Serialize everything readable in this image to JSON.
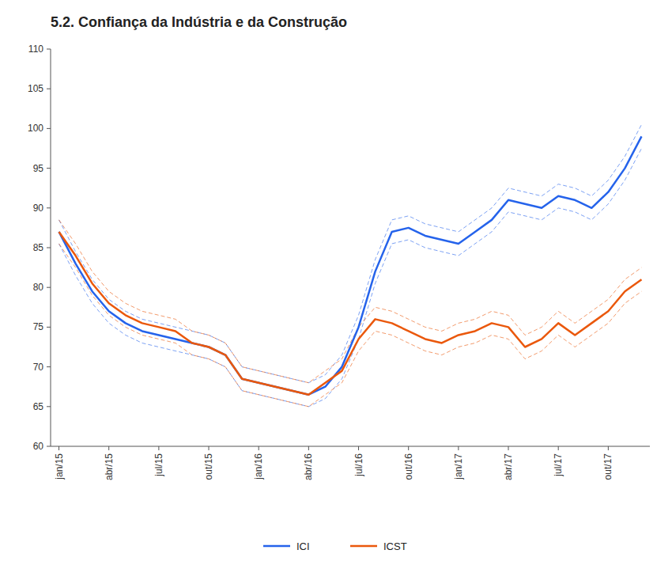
{
  "chart_data": {
    "type": "line",
    "title": "5.2. Confiança da Indústria e da Construção",
    "categories": [
      "jan/15",
      null,
      null,
      "abr/15",
      null,
      null,
      "jul/15",
      null,
      null,
      "out/15",
      null,
      null,
      "jan/16",
      null,
      null,
      "abr/16",
      null,
      null,
      "jul/16",
      null,
      null,
      "out/16",
      null,
      null,
      "jan/17",
      null,
      null,
      "abr/17",
      null,
      null,
      "jul/17",
      null,
      null,
      "out/17",
      null,
      null
    ],
    "series": [
      {
        "name": "ICI",
        "values": [
          87.0,
          83.0,
          79.5,
          77.0,
          75.5,
          74.5,
          74.0,
          73.5,
          73.0,
          72.5,
          71.5,
          68.5,
          68.0,
          67.5,
          67.0,
          66.5,
          67.5,
          70.0,
          75.0,
          82.0,
          87.0,
          87.5,
          86.5,
          86.0,
          85.5,
          87.0,
          88.5,
          91.0,
          90.5,
          90.0,
          91.5,
          91.0,
          90.0,
          92.0,
          95.0,
          99.0
        ],
        "upper": [
          88.5,
          84.5,
          81.0,
          78.5,
          77.0,
          76.0,
          75.5,
          75.0,
          74.5,
          74.0,
          73.0,
          70.0,
          69.5,
          69.0,
          68.5,
          68.0,
          69.0,
          71.5,
          76.5,
          83.5,
          88.5,
          89.0,
          88.0,
          87.5,
          87.0,
          88.5,
          90.0,
          92.5,
          92.0,
          91.5,
          93.0,
          92.5,
          91.5,
          93.5,
          96.5,
          100.5
        ],
        "lower": [
          85.5,
          81.5,
          78.0,
          75.5,
          74.0,
          73.0,
          72.5,
          72.0,
          71.5,
          71.0,
          70.0,
          67.0,
          66.5,
          66.0,
          65.5,
          65.0,
          66.0,
          68.5,
          73.5,
          80.5,
          85.5,
          86.0,
          85.0,
          84.5,
          84.0,
          85.5,
          87.0,
          89.5,
          89.0,
          88.5,
          90.0,
          89.5,
          88.5,
          90.5,
          93.5,
          97.5
        ]
      },
      {
        "name": "ICST",
        "values": [
          87.0,
          84.0,
          80.5,
          78.0,
          76.5,
          75.5,
          75.0,
          74.5,
          73.0,
          72.5,
          71.5,
          68.5,
          68.0,
          67.5,
          67.0,
          66.5,
          68.0,
          69.5,
          73.5,
          76.0,
          75.5,
          74.5,
          73.5,
          73.0,
          74.0,
          74.5,
          75.5,
          75.0,
          72.5,
          73.5,
          75.5,
          74.0,
          75.5,
          77.0,
          79.5,
          81.0
        ],
        "upper": [
          88.5,
          85.5,
          82.0,
          79.5,
          78.0,
          77.0,
          76.5,
          76.0,
          74.5,
          74.0,
          73.0,
          70.0,
          69.5,
          69.0,
          68.5,
          68.0,
          69.5,
          71.0,
          75.0,
          77.5,
          77.0,
          76.0,
          75.0,
          74.5,
          75.5,
          76.0,
          77.0,
          76.5,
          74.0,
          75.0,
          77.0,
          75.5,
          77.0,
          78.5,
          81.0,
          82.5
        ],
        "lower": [
          85.5,
          82.5,
          79.0,
          76.5,
          75.0,
          74.0,
          73.5,
          73.0,
          71.5,
          71.0,
          70.0,
          67.0,
          66.5,
          66.0,
          65.5,
          65.0,
          66.5,
          68.0,
          72.0,
          74.5,
          74.0,
          73.0,
          72.0,
          71.5,
          72.5,
          73.0,
          74.0,
          73.5,
          71.0,
          72.0,
          74.0,
          72.5,
          74.0,
          75.5,
          78.0,
          79.5
        ]
      }
    ],
    "ylim": [
      60,
      110
    ],
    "yticks": [
      60,
      65,
      70,
      75,
      80,
      85,
      90,
      95,
      100,
      105,
      110
    ],
    "grid": false,
    "legend": "bottom"
  }
}
